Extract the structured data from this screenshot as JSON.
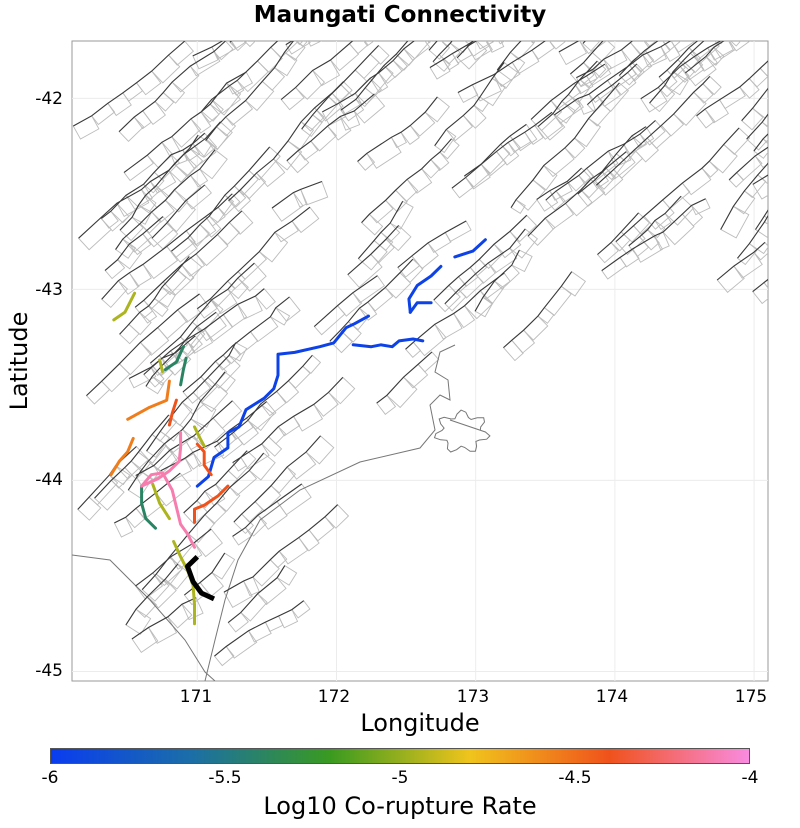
{
  "title": "Maungati Connectivity",
  "x_axis": {
    "label": "Longitude",
    "ticks": [
      "171",
      "172",
      "173",
      "174",
      "175"
    ]
  },
  "y_axis": {
    "label": "Latitude",
    "ticks": [
      "-42",
      "-43",
      "-44",
      "-45"
    ]
  },
  "colorbar": {
    "label": "Log10 Co-rupture Rate",
    "ticks": [
      "-6",
      "-5.5",
      "-5",
      "-4.5",
      "-4"
    ],
    "colors": [
      "#0a3cf0",
      "#1b6ea8",
      "#3a9a20",
      "#f0c41c",
      "#f0521c",
      "#f98be0"
    ]
  },
  "colors": {
    "fault_trace": "#3a3a3a",
    "fault_patch": "#bcbcbc",
    "coastline": "#777777",
    "selected_fault": "#000000"
  },
  "chart_data": {
    "type": "map",
    "title": "Maungati Connectivity",
    "xlabel": "Longitude",
    "ylabel": "Latitude",
    "xlim": [
      170.1,
      175.1
    ],
    "ylim": [
      -45.05,
      -41.7
    ],
    "colorbar_range": [
      -6,
      -4
    ],
    "selected_fault": [
      [
        171.0,
        -44.4
      ],
      [
        170.93,
        -44.45
      ],
      [
        170.97,
        -44.53
      ],
      [
        171.03,
        -44.59
      ],
      [
        171.12,
        -44.62
      ]
    ],
    "ruptures": [
      {
        "value": -5.95,
        "points": [
          [
            171.0,
            -44.03
          ],
          [
            171.08,
            -43.98
          ],
          [
            171.12,
            -43.88
          ],
          [
            171.22,
            -43.83
          ],
          [
            171.22,
            -43.75
          ],
          [
            171.3,
            -43.72
          ],
          [
            171.35,
            -43.63
          ],
          [
            171.48,
            -43.57
          ],
          [
            171.55,
            -43.52
          ],
          [
            171.58,
            -43.45
          ],
          [
            171.58,
            -43.34
          ],
          [
            171.7,
            -43.33
          ],
          [
            171.88,
            -43.3
          ],
          [
            171.98,
            -43.28
          ],
          [
            172.07,
            -43.2
          ],
          [
            172.13,
            -43.18
          ],
          [
            172.23,
            -43.14
          ]
        ]
      },
      {
        "value": -5.95,
        "points": [
          [
            172.12,
            -43.29
          ],
          [
            172.25,
            -43.3
          ],
          [
            172.32,
            -43.29
          ],
          [
            172.4,
            -43.3
          ],
          [
            172.45,
            -43.27
          ],
          [
            172.55,
            -43.26
          ],
          [
            172.62,
            -43.27
          ]
        ]
      },
      {
        "value": -5.95,
        "points": [
          [
            172.53,
            -43.12
          ],
          [
            172.58,
            -43.07
          ],
          [
            172.68,
            -43.07
          ]
        ]
      },
      {
        "value": -5.95,
        "points": [
          [
            172.53,
            -43.12
          ],
          [
            172.52,
            -43.05
          ],
          [
            172.58,
            -42.98
          ],
          [
            172.68,
            -42.93
          ],
          [
            172.75,
            -42.88
          ]
        ]
      },
      {
        "value": -5.95,
        "points": [
          [
            172.85,
            -42.83
          ],
          [
            172.98,
            -42.8
          ],
          [
            173.07,
            -42.74
          ]
        ]
      },
      {
        "value": -5.4,
        "points": [
          [
            170.77,
            -43.42
          ],
          [
            170.85,
            -43.38
          ],
          [
            170.9,
            -43.3
          ]
        ]
      },
      {
        "value": -5.4,
        "points": [
          [
            170.88,
            -43.5
          ],
          [
            170.9,
            -43.42
          ],
          [
            170.92,
            -43.36
          ]
        ]
      },
      {
        "value": -5.4,
        "points": [
          [
            170.6,
            -44.03
          ],
          [
            170.6,
            -44.12
          ],
          [
            170.63,
            -44.2
          ],
          [
            170.7,
            -44.25
          ]
        ]
      },
      {
        "value": -4.95,
        "points": [
          [
            170.4,
            -43.16
          ],
          [
            170.48,
            -43.12
          ],
          [
            170.55,
            -43.02
          ]
        ]
      },
      {
        "value": -4.95,
        "points": [
          [
            170.73,
            -43.37
          ],
          [
            170.75,
            -43.43
          ]
        ]
      },
      {
        "value": -4.95,
        "points": [
          [
            170.68,
            -44.02
          ],
          [
            170.73,
            -44.12
          ],
          [
            170.8,
            -44.2
          ]
        ]
      },
      {
        "value": -4.95,
        "points": [
          [
            170.83,
            -44.32
          ],
          [
            170.88,
            -44.4
          ],
          [
            170.93,
            -44.47
          ],
          [
            170.97,
            -44.55
          ],
          [
            170.98,
            -44.65
          ],
          [
            170.98,
            -44.75
          ]
        ]
      },
      {
        "value": -4.95,
        "points": [
          [
            170.98,
            -43.72
          ],
          [
            171.02,
            -43.78
          ],
          [
            171.05,
            -43.82
          ]
        ]
      },
      {
        "value": -4.55,
        "points": [
          [
            170.5,
            -43.68
          ],
          [
            170.65,
            -43.62
          ],
          [
            170.78,
            -43.58
          ],
          [
            170.8,
            -43.48
          ]
        ]
      },
      {
        "value": -4.55,
        "points": [
          [
            170.38,
            -43.97
          ],
          [
            170.44,
            -43.9
          ],
          [
            170.5,
            -43.85
          ],
          [
            170.54,
            -43.78
          ]
        ]
      },
      {
        "value": -4.4,
        "points": [
          [
            170.8,
            -43.71
          ],
          [
            170.82,
            -43.65
          ],
          [
            170.85,
            -43.58
          ]
        ]
      },
      {
        "value": -4.4,
        "points": [
          [
            171.0,
            -43.81
          ],
          [
            171.05,
            -43.85
          ],
          [
            171.05,
            -43.92
          ],
          [
            171.1,
            -43.97
          ]
        ]
      },
      {
        "value": -4.4,
        "points": [
          [
            170.98,
            -44.22
          ],
          [
            170.98,
            -44.15
          ],
          [
            171.05,
            -44.13
          ],
          [
            171.15,
            -44.08
          ],
          [
            171.22,
            -44.03
          ]
        ]
      },
      {
        "value": -4.1,
        "points": [
          [
            170.88,
            -43.75
          ],
          [
            170.88,
            -43.83
          ],
          [
            170.87,
            -43.9
          ],
          [
            170.8,
            -43.95
          ],
          [
            170.72,
            -43.99
          ],
          [
            170.6,
            -44.03
          ],
          [
            170.67,
            -43.97
          ],
          [
            170.75,
            -43.96
          ],
          [
            170.82,
            -44.05
          ],
          [
            170.85,
            -44.14
          ],
          [
            170.88,
            -44.23
          ],
          [
            170.93,
            -44.28
          ],
          [
            170.98,
            -44.35
          ]
        ]
      }
    ]
  }
}
